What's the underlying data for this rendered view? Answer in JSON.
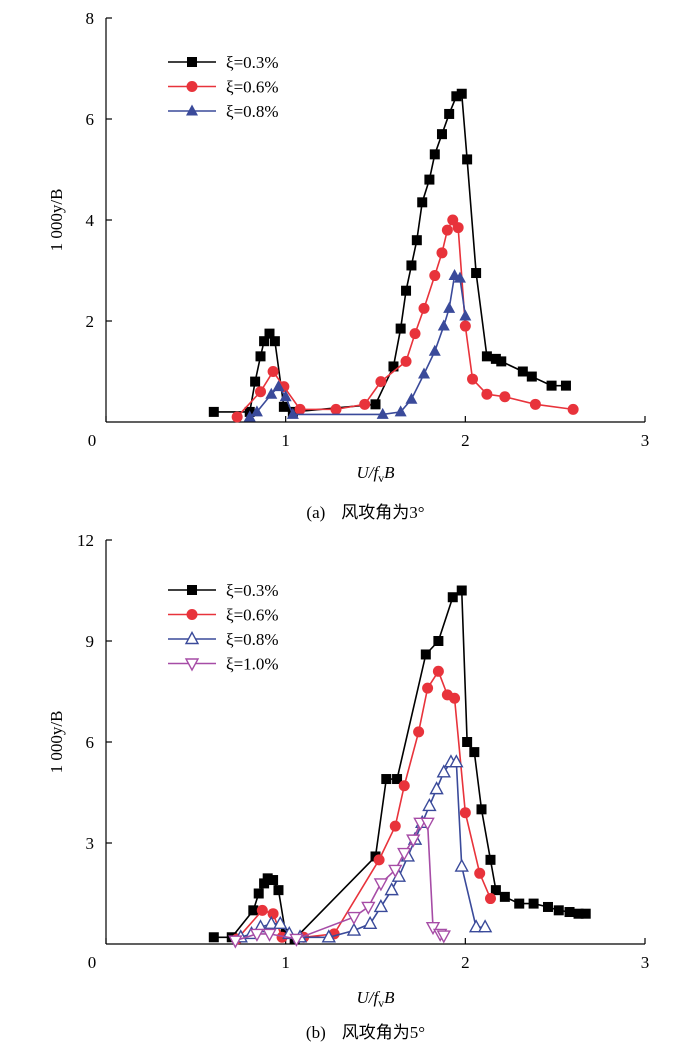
{
  "chart_data": [
    {
      "id": "a",
      "type": "line",
      "caption_label": "(a)",
      "caption_text": "风攻角为3°",
      "xlabel": "U/f",
      "xlabel_sub": "v",
      "xlabel_tail": "B",
      "ylabel": "1 000y/B",
      "xlim": [
        0,
        3
      ],
      "ylim": [
        0,
        8
      ],
      "xticks": [
        0,
        1,
        2,
        3
      ],
      "yticks": [
        2,
        4,
        6,
        8
      ],
      "legend_position": "top-left",
      "series": [
        {
          "name": "ξ=0.3%",
          "color": "#000000",
          "marker": "square",
          "x": [
            0.6,
            0.8,
            0.83,
            0.86,
            0.88,
            0.91,
            0.94,
            0.99,
            1.04,
            1.5,
            1.6,
            1.64,
            1.67,
            1.7,
            1.73,
            1.76,
            1.8,
            1.83,
            1.87,
            1.91,
            1.95,
            1.98,
            2.01,
            2.06,
            2.12,
            2.17,
            2.2,
            2.32,
            2.37,
            2.48,
            2.56
          ],
          "y": [
            0.2,
            0.2,
            0.8,
            1.3,
            1.6,
            1.75,
            1.6,
            0.3,
            0.2,
            0.35,
            1.1,
            1.85,
            2.6,
            3.1,
            3.6,
            4.35,
            4.8,
            5.3,
            5.7,
            6.1,
            6.45,
            6.5,
            5.2,
            2.95,
            1.3,
            1.25,
            1.2,
            1.0,
            0.9,
            0.72,
            0.72
          ]
        },
        {
          "name": "ξ=0.6%",
          "color": "#e8333b",
          "marker": "circle",
          "x": [
            0.73,
            0.86,
            0.93,
            0.99,
            1.08,
            1.28,
            1.44,
            1.53,
            1.67,
            1.72,
            1.77,
            1.83,
            1.87,
            1.9,
            1.93,
            1.96,
            2.0,
            2.04,
            2.12,
            2.22,
            2.39,
            2.6
          ],
          "y": [
            0.1,
            0.6,
            1.0,
            0.7,
            0.25,
            0.25,
            0.35,
            0.8,
            1.2,
            1.75,
            2.25,
            2.9,
            3.35,
            3.8,
            4.0,
            3.85,
            1.9,
            0.85,
            0.55,
            0.5,
            0.35,
            0.25
          ]
        },
        {
          "name": "ξ=0.8%",
          "color": "#3a4a9a",
          "marker": "triangle-up",
          "x": [
            0.8,
            0.84,
            0.92,
            0.96,
            1.0,
            1.04,
            1.54,
            1.64,
            1.7,
            1.77,
            1.83,
            1.88,
            1.91,
            1.94,
            1.97,
            2.0
          ],
          "y": [
            0.1,
            0.2,
            0.55,
            0.7,
            0.5,
            0.15,
            0.15,
            0.2,
            0.45,
            0.95,
            1.4,
            1.9,
            2.25,
            2.9,
            2.85,
            2.1
          ]
        }
      ]
    },
    {
      "id": "b",
      "type": "line",
      "caption_label": "(b)",
      "caption_text": "风攻角为5°",
      "xlabel": "U/f",
      "xlabel_sub": "v",
      "xlabel_tail": "B",
      "ylabel": "1 000y/B",
      "xlim": [
        0,
        3
      ],
      "ylim": [
        0,
        12
      ],
      "xticks": [
        0,
        1,
        2,
        3
      ],
      "yticks": [
        3,
        6,
        9,
        12
      ],
      "legend_position": "top-left",
      "series": [
        {
          "name": "ξ=0.3%",
          "color": "#000000",
          "marker": "square",
          "x": [
            0.6,
            0.7,
            0.82,
            0.85,
            0.88,
            0.9,
            0.93,
            0.96,
            1.0,
            1.05,
            1.5,
            1.56,
            1.62,
            1.78,
            1.85,
            1.93,
            1.98,
            2.01,
            2.05,
            2.09,
            2.14,
            2.17,
            2.22,
            2.3,
            2.38,
            2.46,
            2.52,
            2.58,
            2.63,
            2.67
          ],
          "y": [
            0.2,
            0.2,
            1.0,
            1.5,
            1.8,
            1.95,
            1.9,
            1.6,
            0.3,
            0.15,
            2.6,
            4.9,
            4.9,
            8.6,
            9.0,
            10.3,
            10.5,
            6.0,
            5.7,
            4.0,
            2.5,
            1.6,
            1.4,
            1.2,
            1.2,
            1.1,
            1.0,
            0.95,
            0.9,
            0.9
          ]
        },
        {
          "name": "ξ=0.6%",
          "color": "#e8333b",
          "marker": "circle",
          "x": [
            0.73,
            0.87,
            0.93,
            0.98,
            1.1,
            1.27,
            1.52,
            1.61,
            1.66,
            1.74,
            1.79,
            1.85,
            1.9,
            1.94,
            2.0,
            2.08,
            2.14
          ],
          "y": [
            0.15,
            1.0,
            0.9,
            0.2,
            0.2,
            0.3,
            2.5,
            3.5,
            4.7,
            6.3,
            7.6,
            8.1,
            7.4,
            7.3,
            3.9,
            2.1,
            1.35
          ]
        },
        {
          "name": "ξ=0.8%",
          "color": "#3a4a9a",
          "marker": "triangle-up-open",
          "x": [
            0.75,
            0.81,
            0.86,
            0.92,
            0.97,
            1.02,
            1.08,
            1.24,
            1.38,
            1.47,
            1.53,
            1.59,
            1.63,
            1.68,
            1.72,
            1.76,
            1.8,
            1.84,
            1.88,
            1.92,
            1.95,
            1.98,
            2.06,
            2.11
          ],
          "y": [
            0.2,
            0.3,
            0.5,
            0.6,
            0.6,
            0.3,
            0.2,
            0.2,
            0.4,
            0.6,
            1.1,
            1.6,
            2.0,
            2.6,
            3.1,
            3.6,
            4.1,
            4.6,
            5.1,
            5.4,
            5.4,
            2.3,
            0.5,
            0.5
          ]
        },
        {
          "name": "ξ=1.0%",
          "color": "#a64ca6",
          "marker": "triangle-down-open",
          "x": [
            0.72,
            0.84,
            0.91,
            1.06,
            1.38,
            1.46,
            1.53,
            1.61,
            1.66,
            1.71,
            1.75,
            1.79,
            1.82,
            1.86,
            1.88
          ],
          "y": [
            0.1,
            0.3,
            0.3,
            0.15,
            0.8,
            1.1,
            1.8,
            2.2,
            2.7,
            3.1,
            3.6,
            3.6,
            0.5,
            0.3,
            0.25
          ]
        }
      ]
    }
  ]
}
